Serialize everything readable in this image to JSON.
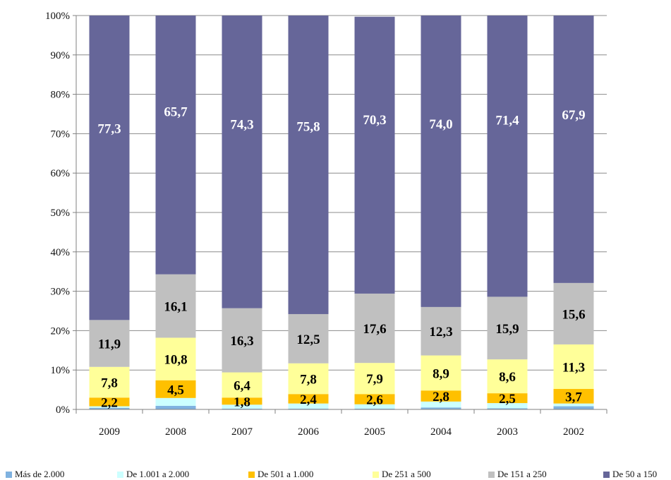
{
  "chart_data": {
    "type": "bar",
    "stacked": true,
    "percent_stacked": true,
    "categories": [
      "2009",
      "2008",
      "2007",
      "2006",
      "2005",
      "2004",
      "2003",
      "2002"
    ],
    "ylim": [
      0,
      100
    ],
    "y_ticks": [
      "0%",
      "10%",
      "20%",
      "30%",
      "40%",
      "50%",
      "60%",
      "70%",
      "80%",
      "90%",
      "100%"
    ],
    "gridlines": true,
    "legend_position": "bottom",
    "series": [
      {
        "name": "Más de 2.000",
        "color": "#7fb2e0",
        "values": [
          0.4,
          0.9,
          0.2,
          0.2,
          0.2,
          0.5,
          0.3,
          0.8
        ],
        "labels": [
          "",
          "",
          "",
          "",
          "",
          "",
          "",
          ""
        ]
      },
      {
        "name": "De 1.001 a 2.000",
        "color": "#ccffff",
        "values": [
          0.4,
          2.0,
          1.0,
          1.3,
          1.1,
          1.5,
          1.3,
          0.7
        ],
        "labels": [
          "",
          "",
          "",
          "",
          "",
          "",
          "",
          ""
        ]
      },
      {
        "name": "De 501 a 1.000",
        "color": "#ffc000",
        "values": [
          2.2,
          4.5,
          1.8,
          2.4,
          2.6,
          2.8,
          2.5,
          3.7
        ],
        "labels": [
          "2,2",
          "4,5",
          "1,8",
          "2,4",
          "2,6",
          "2,8",
          "2,5",
          "3,7"
        ]
      },
      {
        "name": "De 251 a 500",
        "color": "#ffff99",
        "values": [
          7.8,
          10.8,
          6.4,
          7.8,
          7.9,
          8.9,
          8.6,
          11.3
        ],
        "labels": [
          "7,8",
          "10,8",
          "6,4",
          "7,8",
          "7,9",
          "8,9",
          "8,6",
          "11,3"
        ]
      },
      {
        "name": "De 151 a 250",
        "color": "#c0c0c0",
        "values": [
          11.9,
          16.1,
          16.3,
          12.5,
          17.6,
          12.3,
          15.9,
          15.6
        ],
        "labels": [
          "11,9",
          "16,1",
          "16,3",
          "12,5",
          "17,6",
          "12,3",
          "15,9",
          "15,6"
        ]
      },
      {
        "name": "De 50 a 150",
        "color": "#666699",
        "values": [
          77.3,
          65.7,
          74.3,
          75.8,
          70.3,
          74.0,
          71.4,
          67.9
        ],
        "labels": [
          "77,3",
          "65,7",
          "74,3",
          "75,8",
          "70,3",
          "74,0",
          "71,4",
          "67,9"
        ]
      }
    ]
  }
}
